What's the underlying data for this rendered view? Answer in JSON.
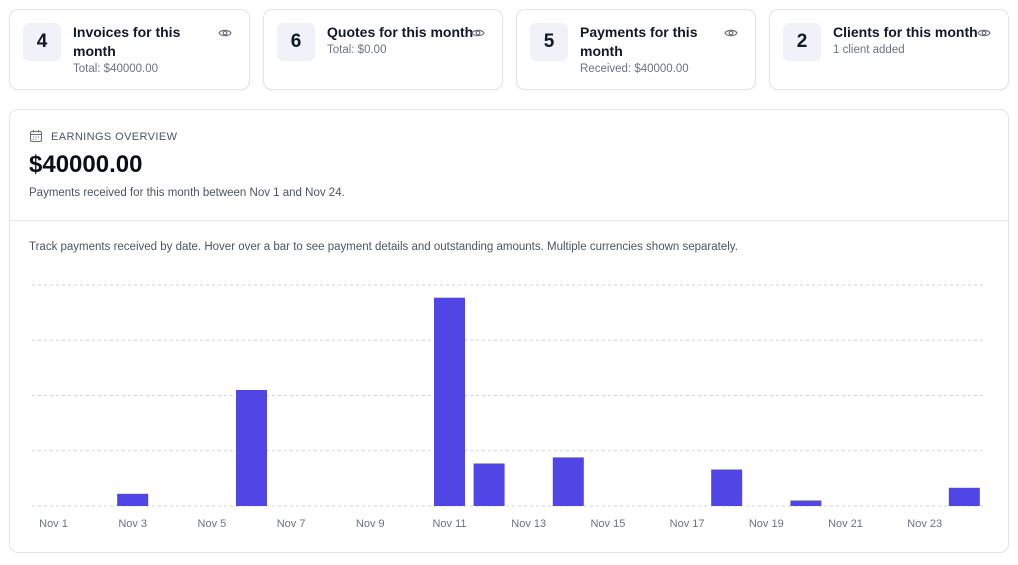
{
  "cards": [
    {
      "count": "4",
      "title": "Invoices for this month",
      "subtitle": "Total: $40000.00"
    },
    {
      "count": "6",
      "title": "Quotes for this month",
      "subtitle": "Total: $0.00"
    },
    {
      "count": "5",
      "title": "Payments for this month",
      "subtitle": "Received: $40000.00"
    },
    {
      "count": "2",
      "title": "Clients for this month",
      "subtitle": "1 client added"
    }
  ],
  "overview": {
    "label": "EARNINGS OVERVIEW",
    "amount": "$40000.00",
    "description": "Payments received for this month between Nov 1 and Nov 24.",
    "hint": "Track payments received by date. Hover over a bar to see payment details and outstanding amounts. Multiple currencies shown separately."
  },
  "colors": {
    "bar": "#4f46e5",
    "grid": "#d1d5db"
  },
  "icons": {
    "view": "eye-icon",
    "calendar": "calendar-icon"
  },
  "chart_data": {
    "type": "bar",
    "categories": [
      "Nov 1",
      "Nov 2",
      "Nov 3",
      "Nov 4",
      "Nov 5",
      "Nov 6",
      "Nov 7",
      "Nov 8",
      "Nov 9",
      "Nov 10",
      "Nov 11",
      "Nov 12",
      "Nov 13",
      "Nov 14",
      "Nov 15",
      "Nov 16",
      "Nov 17",
      "Nov 18",
      "Nov 19",
      "Nov 20",
      "Nov 21",
      "Nov 22",
      "Nov 23",
      "Nov 24"
    ],
    "tick_labels": [
      "Nov 1",
      "Nov 3",
      "Nov 5",
      "Nov 7",
      "Nov 9",
      "Nov 11",
      "Nov 13",
      "Nov 15",
      "Nov 17",
      "Nov 19",
      "Nov 21",
      "Nov 23"
    ],
    "values": [
      0,
      0,
      0.22,
      0,
      0,
      2.1,
      0,
      0,
      0,
      0,
      3.77,
      0.77,
      0,
      0.88,
      0,
      0,
      0,
      0.66,
      0,
      0.1,
      0,
      0,
      0,
      0.33
    ],
    "ylim": [
      0,
      4
    ],
    "grid": true
  }
}
